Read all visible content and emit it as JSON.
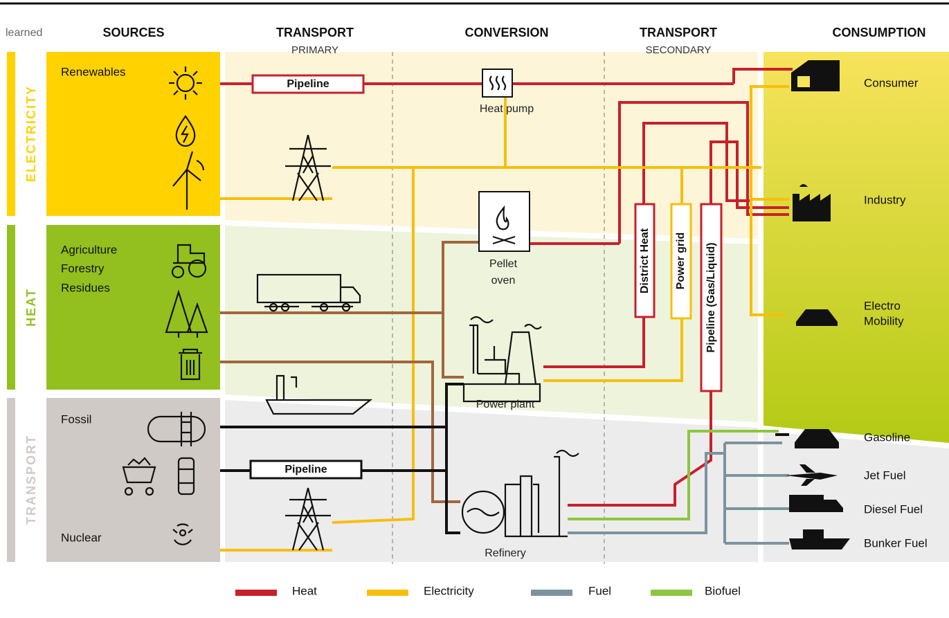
{
  "header": {
    "label": "learned",
    "columns": [
      {
        "title": "SOURCES"
      },
      {
        "title": "TRANSPORT",
        "subtitle": "PRIMARY"
      },
      {
        "title": "CONVERSION"
      },
      {
        "title": "TRANSPORT",
        "subtitle": "SECONDARY"
      },
      {
        "title": "CONSUMPTION"
      }
    ]
  },
  "rows": [
    "ELECTRICITY",
    "HEAT",
    "TRANSPORT"
  ],
  "sources": [
    "Renewables",
    "Agriculture",
    "Forestry",
    "Residues",
    "Fossil",
    "Nuclear"
  ],
  "transport_primary": [
    "Pipeline",
    "Pipeline"
  ],
  "conversion": [
    {
      "lines": [
        "Heat pump"
      ]
    },
    {
      "lines": [
        "Pellet",
        "oven"
      ]
    },
    {
      "lines": [
        "Power plant"
      ]
    },
    {
      "lines": [
        "Refinery"
      ]
    }
  ],
  "transport_secondary": [
    "District Heat",
    "Power grid",
    "Pipeline (Gas/Liquid)"
  ],
  "consumption": [
    {
      "lines": [
        "Consumer"
      ]
    },
    {
      "lines": [
        "Industry"
      ]
    },
    {
      "lines": [
        "Electro",
        "Mobility"
      ]
    },
    {
      "lines": [
        "Gasoline"
      ]
    },
    {
      "lines": [
        "Jet Fuel"
      ]
    },
    {
      "lines": [
        "Diesel Fuel"
      ]
    },
    {
      "lines": [
        "Bunker Fuel"
      ]
    }
  ],
  "legend": [
    {
      "label": "Heat",
      "color": "#c8202c"
    },
    {
      "label": "Electricity",
      "color": "#f6bf0e"
    },
    {
      "label": "Fuel",
      "color": "#7b939e"
    },
    {
      "label": "Biofuel",
      "color": "#8dc63f"
    }
  ]
}
